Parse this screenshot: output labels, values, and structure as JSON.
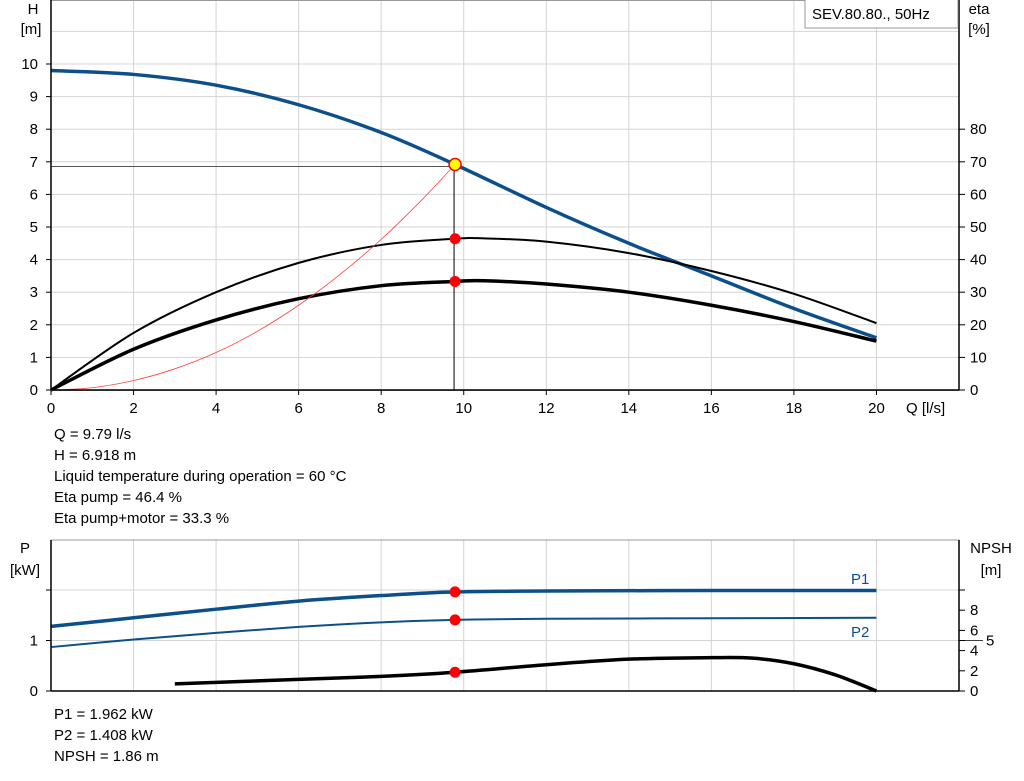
{
  "legend_box": "SEV.80.80., 50Hz",
  "colors": {
    "head": "#0d4f8b",
    "power": "#0d4f8b",
    "efficiency": "#000000",
    "system": "#ff4040",
    "marker": "#ff0000",
    "duty_point": "#ffff00",
    "grid": "#d4d4d4"
  },
  "chart_data": [
    {
      "type": "line",
      "x_label": "Q [l/s]",
      "y_left_label": [
        "H",
        "[m]"
      ],
      "y_right_label": [
        "eta",
        "[%]"
      ],
      "xlim": [
        0,
        22
      ],
      "ylim_left": [
        0,
        12
      ],
      "ylim_right": [
        0,
        120
      ],
      "x_ticks": [
        0,
        2,
        4,
        6,
        8,
        10,
        12,
        14,
        16,
        18,
        20
      ],
      "y_left_ticks": [
        0,
        1,
        2,
        3,
        4,
        5,
        6,
        7,
        8,
        9,
        10
      ],
      "y_right_ticks": [
        0,
        10,
        20,
        30,
        40,
        50,
        60,
        70,
        80
      ],
      "grid": true,
      "series": [
        {
          "key": "head",
          "axis": "left",
          "points": [
            [
              0,
              9.8
            ],
            [
              2,
              9.68
            ],
            [
              4,
              9.35
            ],
            [
              6,
              8.75
            ],
            [
              8,
              7.9
            ],
            [
              9.79,
              6.918
            ],
            [
              12,
              5.6
            ],
            [
              14,
              4.5
            ],
            [
              16,
              3.5
            ],
            [
              18,
              2.5
            ],
            [
              20,
              1.6
            ]
          ]
        },
        {
          "key": "eta_pump",
          "axis": "right",
          "points": [
            [
              0,
              0
            ],
            [
              2,
              17.5
            ],
            [
              4,
              30
            ],
            [
              6,
              39
            ],
            [
              8,
              44.5
            ],
            [
              9.79,
              46.4
            ],
            [
              10.5,
              46.5
            ],
            [
              12,
              45.5
            ],
            [
              14,
              42
            ],
            [
              16,
              36.5
            ],
            [
              18,
              29.5
            ],
            [
              20,
              20.5
            ]
          ]
        },
        {
          "key": "eta_pump_motor",
          "axis": "right",
          "points": [
            [
              0,
              0
            ],
            [
              2,
              12.5
            ],
            [
              4,
              21.5
            ],
            [
              6,
              28
            ],
            [
              8,
              32
            ],
            [
              9.79,
              33.3
            ],
            [
              10.5,
              33.5
            ],
            [
              12,
              32.5
            ],
            [
              14,
              30
            ],
            [
              16,
              26
            ],
            [
              18,
              21
            ],
            [
              20,
              15
            ]
          ]
        },
        {
          "key": "system_curve",
          "axis": "left",
          "points": [
            [
              0,
              0
            ],
            [
              1,
              0.07
            ],
            [
              2,
              0.29
            ],
            [
              3,
              0.65
            ],
            [
              4,
              1.15
            ],
            [
              5,
              1.8
            ],
            [
              6,
              2.6
            ],
            [
              7,
              3.54
            ],
            [
              8,
              4.62
            ],
            [
              9,
              5.85
            ],
            [
              9.79,
              6.918
            ]
          ]
        }
      ],
      "duty_point": {
        "Q": 9.79,
        "H": 6.918,
        "eta_pump": 46.4,
        "eta_pump_motor": 33.3
      }
    },
    {
      "type": "line",
      "y_left_label": [
        "P",
        "[kW]"
      ],
      "y_right_label": [
        "NPSH",
        "[m]"
      ],
      "xlim": [
        0,
        22
      ],
      "ylim_left": [
        0,
        3
      ],
      "ylim_right": [
        0,
        15
      ],
      "y_left_ticks": [
        0,
        1
      ],
      "y_right_ticks": [
        0,
        2,
        4,
        5,
        6,
        8
      ],
      "grid": true,
      "series": [
        {
          "key": "P1",
          "name": "P1",
          "axis": "left",
          "points": [
            [
              0,
              1.28
            ],
            [
              2,
              1.45
            ],
            [
              4,
              1.62
            ],
            [
              6,
              1.78
            ],
            [
              8,
              1.89
            ],
            [
              9.79,
              1.962
            ],
            [
              12,
              1.98
            ],
            [
              16,
              1.99
            ],
            [
              20,
              1.99
            ]
          ]
        },
        {
          "key": "P2",
          "name": "P2",
          "axis": "left",
          "points": [
            [
              0,
              0.87
            ],
            [
              2,
              1.02
            ],
            [
              4,
              1.15
            ],
            [
              6,
              1.27
            ],
            [
              8,
              1.36
            ],
            [
              9.79,
              1.408
            ],
            [
              12,
              1.43
            ],
            [
              16,
              1.44
            ],
            [
              20,
              1.45
            ]
          ]
        },
        {
          "key": "NPSH",
          "axis": "right",
          "points": [
            [
              3,
              0.7
            ],
            [
              6,
              1.15
            ],
            [
              8,
              1.45
            ],
            [
              9.79,
              1.86
            ],
            [
              12,
              2.6
            ],
            [
              14,
              3.15
            ],
            [
              16,
              3.3
            ],
            [
              17,
              3.25
            ],
            [
              18,
              2.7
            ],
            [
              19,
              1.6
            ],
            [
              20,
              0
            ]
          ]
        }
      ],
      "duty_point": {
        "Q": 9.79,
        "P1": 1.962,
        "P2": 1.408,
        "NPSH": 1.86
      }
    }
  ],
  "info_top": [
    "Q = 9.79 l/s",
    "H = 6.918 m",
    "Liquid temperature during operation = 60 °C",
    "Eta pump = 46.4 %",
    "Eta pump+motor = 33.3 %"
  ],
  "info_bottom": [
    "P1 = 1.962 kW",
    "P2 = 1.408 kW",
    "NPSH = 1.86 m"
  ]
}
